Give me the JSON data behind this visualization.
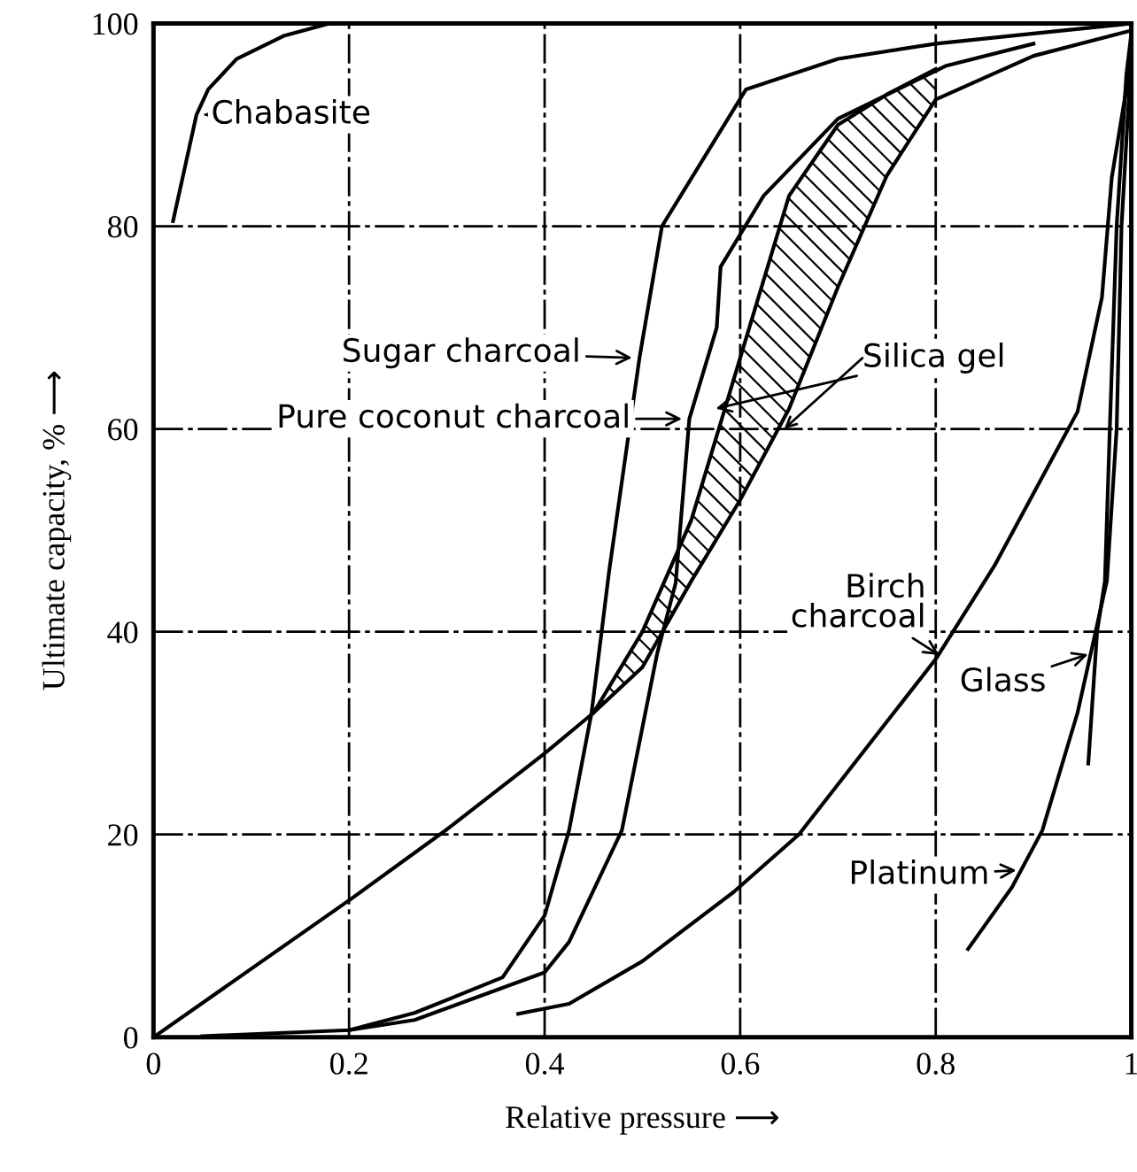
{
  "chart_data": {
    "type": "line",
    "xlabel": "Relative pressure ⟶",
    "ylabel": "Ultimate capacity, % ⟶",
    "xlim": [
      0,
      1
    ],
    "ylim": [
      0,
      100
    ],
    "xticks": [
      0,
      0.2,
      0.4,
      0.6,
      0.8,
      1
    ],
    "yticks": [
      0,
      20,
      40,
      60,
      80,
      100
    ],
    "grid": true,
    "marker": "none",
    "line_style": "solid",
    "series": [
      {
        "color": "#000000",
        "x": [
          0.02,
          0.044,
          0.056,
          0.085,
          0.134,
          0.18,
          0.3
        ],
        "values": [
          80.5,
          91,
          93.5,
          96.5,
          98.8,
          100,
          100
        ]
      },
      {
        "color": "#000000",
        "x": [
          0.2,
          0.267,
          0.357,
          0.4,
          0.425,
          0.448,
          0.466,
          0.497,
          0.52,
          0.606,
          0.7,
          0.8,
          0.9,
          1.0
        ],
        "values": [
          0.7,
          2.4,
          5.9,
          12,
          20.4,
          32,
          46,
          67,
          80,
          93.5,
          96.5,
          98,
          99,
          100
        ]
      },
      {
        "color": "#000000",
        "x": [
          0.05,
          0.2,
          0.267,
          0.4,
          0.425,
          0.479,
          0.515,
          0.534,
          0.548,
          0.576,
          0.58,
          0.624,
          0.7,
          0.81,
          0.9
        ],
        "values": [
          0.1,
          0.7,
          1.7,
          6.4,
          9.4,
          20.4,
          37.8,
          44.8,
          61,
          70,
          76,
          83,
          90.6,
          95.8,
          98
        ]
      },
      {
        "color": "#000000",
        "x": [
          0,
          0.2,
          0.3,
          0.4,
          0.45,
          0.5,
          0.55,
          0.6,
          0.65,
          0.7,
          0.75,
          0.8,
          0.9,
          1.0
        ],
        "values": [
          0,
          13.5,
          20.5,
          28,
          32,
          36.5,
          45,
          53,
          62,
          74,
          85,
          92.5,
          96.8,
          99.3
        ]
      },
      {
        "color": "#000000",
        "x": [
          0.45,
          0.5,
          0.55,
          0.6,
          0.65,
          0.7,
          0.75,
          0.8
        ],
        "values": [
          32,
          40,
          51,
          67,
          83,
          90,
          93,
          95.5
        ],
        "lower": [
          32,
          36.5,
          45,
          53,
          62,
          74,
          85,
          92.5
        ],
        "upper": [
          32,
          40,
          51,
          67,
          83,
          90,
          93,
          95.5
        ]
      },
      {
        "color": "#000000",
        "x": [
          0.373,
          0.425,
          0.5,
          0.593,
          0.66,
          0.8,
          0.86,
          0.945,
          0.97,
          0.98,
          1.0
        ],
        "values": [
          2.3,
          3.3,
          7.5,
          14.3,
          20,
          37.3,
          46.5,
          61.7,
          73,
          84.8,
          96.5
        ]
      },
      {
        "color": "#000000",
        "x": [
          0.956,
          0.965,
          0.973,
          0.978,
          0.985,
          0.995,
          1.0
        ],
        "values": [
          27,
          40,
          45,
          60,
          80,
          95,
          99
        ]
      },
      {
        "color": "#000000",
        "x": [
          0.833,
          0.878,
          0.909,
          0.945,
          0.975,
          0.985,
          0.99,
          1.0
        ],
        "values": [
          8.7,
          14.8,
          20.4,
          32,
          45,
          60,
          80,
          97
        ]
      }
    ],
    "annotations": [
      {
        "text": "Chabasite",
        "x": 0.044,
        "y": 91
      },
      {
        "text": "Sugar charcoal",
        "x": 0.497,
        "y": 67
      },
      {
        "text": "Pure coconut charcoal",
        "x": 0.548,
        "y": 61
      },
      {
        "text": "Silica gel",
        "x": 0.575,
        "y": 62
      },
      {
        "text": "Birch\ncharcoal",
        "x": 0.81,
        "y": 37.3
      },
      {
        "text": "Glass",
        "x": 0.963,
        "y": 38
      },
      {
        "text": "Platinum",
        "x": 0.89,
        "y": 16.5
      }
    ]
  }
}
